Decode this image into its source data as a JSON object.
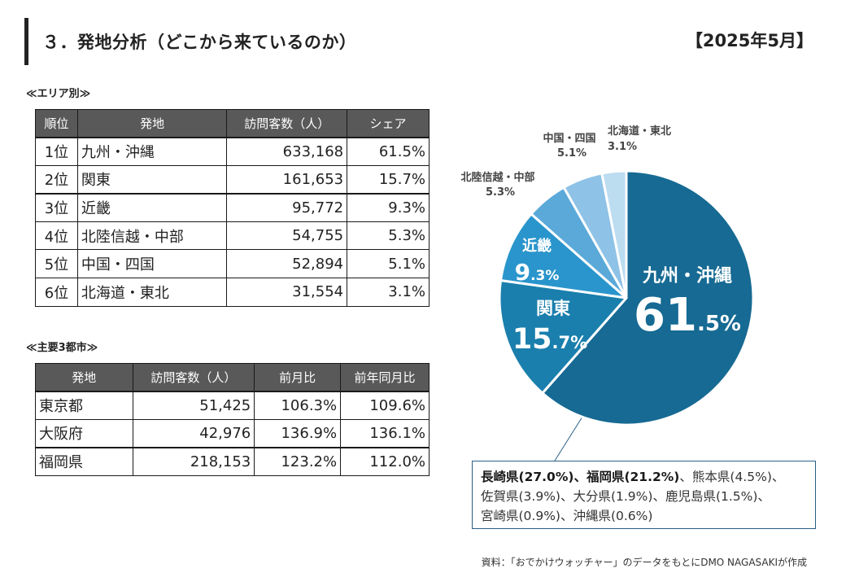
{
  "header": {
    "title": "３．発地分析（どこから来ているのか）",
    "period": "【2025年5月】"
  },
  "area_section": {
    "label": "≪エリア別≫",
    "columns": [
      "順位",
      "発地",
      "訪問客数（人）",
      "シェア"
    ],
    "rows": [
      {
        "rank": "1位",
        "origin": "九州・沖縄",
        "visitors": "633,168",
        "share": "61.5%"
      },
      {
        "rank": "2位",
        "origin": "関東",
        "visitors": "161,653",
        "share": "15.7%"
      },
      {
        "rank": "3位",
        "origin": "近畿",
        "visitors": "95,772",
        "share": "9.3%"
      },
      {
        "rank": "4位",
        "origin": "北陸信越・中部",
        "visitors": "54,755",
        "share": "5.3%"
      },
      {
        "rank": "5位",
        "origin": "中国・四国",
        "visitors": "52,894",
        "share": "5.1%"
      },
      {
        "rank": "6位",
        "origin": "北海道・東北",
        "visitors": "31,554",
        "share": "3.1%"
      }
    ]
  },
  "city_section": {
    "label": "≪主要3都市≫",
    "columns": [
      "発地",
      "訪問客数（人）",
      "前月比",
      "前年同月比"
    ],
    "rows": [
      {
        "origin": "東京都",
        "visitors": "51,425",
        "mom": "106.3%",
        "yoy": "109.6%"
      },
      {
        "origin": "大阪府",
        "visitors": "42,976",
        "mom": "136.9%",
        "yoy": "136.1%"
      },
      {
        "origin": "福岡県",
        "visitors": "218,153",
        "mom": "123.2%",
        "yoy": "112.0%"
      }
    ]
  },
  "chart_data": {
    "type": "pie",
    "title": "",
    "start": "12 o'clock, clockwise",
    "slices": [
      {
        "label": "九州・沖縄",
        "value": 61.5,
        "int": "61",
        "dec": ".5",
        "unit": "%",
        "color": "#166a93",
        "label_style": "inside-large"
      },
      {
        "label": "関東",
        "value": 15.7,
        "int": "15",
        "dec": ".7",
        "unit": "%",
        "color": "#1a7fad",
        "label_style": "inside-medium"
      },
      {
        "label": "近畿",
        "value": 9.3,
        "int": "9",
        "dec": ".3",
        "unit": "%",
        "color": "#2a95cc",
        "label_style": "inside-small"
      },
      {
        "label": "北陸信越・中部",
        "value": 5.3,
        "text": "5.3%",
        "color": "#5aa9d9",
        "label_style": "outside"
      },
      {
        "label": "中国・四国",
        "value": 5.1,
        "text": "5.1%",
        "color": "#8ec2e6",
        "label_style": "outside"
      },
      {
        "label": "北海道・東北",
        "value": 3.1,
        "text": "3.1%",
        "color": "#bcdcf0",
        "label_style": "outside"
      }
    ]
  },
  "breakdown_note": {
    "bold_part": "長崎県(27.0%)、福岡県(21.2%)",
    "rest_line1": "、熊本県(4.5%)、",
    "line2": "佐賀県(3.9%)、大分県(1.9%)、鹿児島県(1.5%)、",
    "line3": "宮崎県(0.9%)、沖縄県(0.6%)"
  },
  "source": "資料：「おでかけウォッチャー」のデータをもとにDMO NAGASAKIが作成",
  "colors": {
    "header_bg": "#595959",
    "note_border": "#2a5f86",
    "leader_line": "#2a5f86"
  }
}
